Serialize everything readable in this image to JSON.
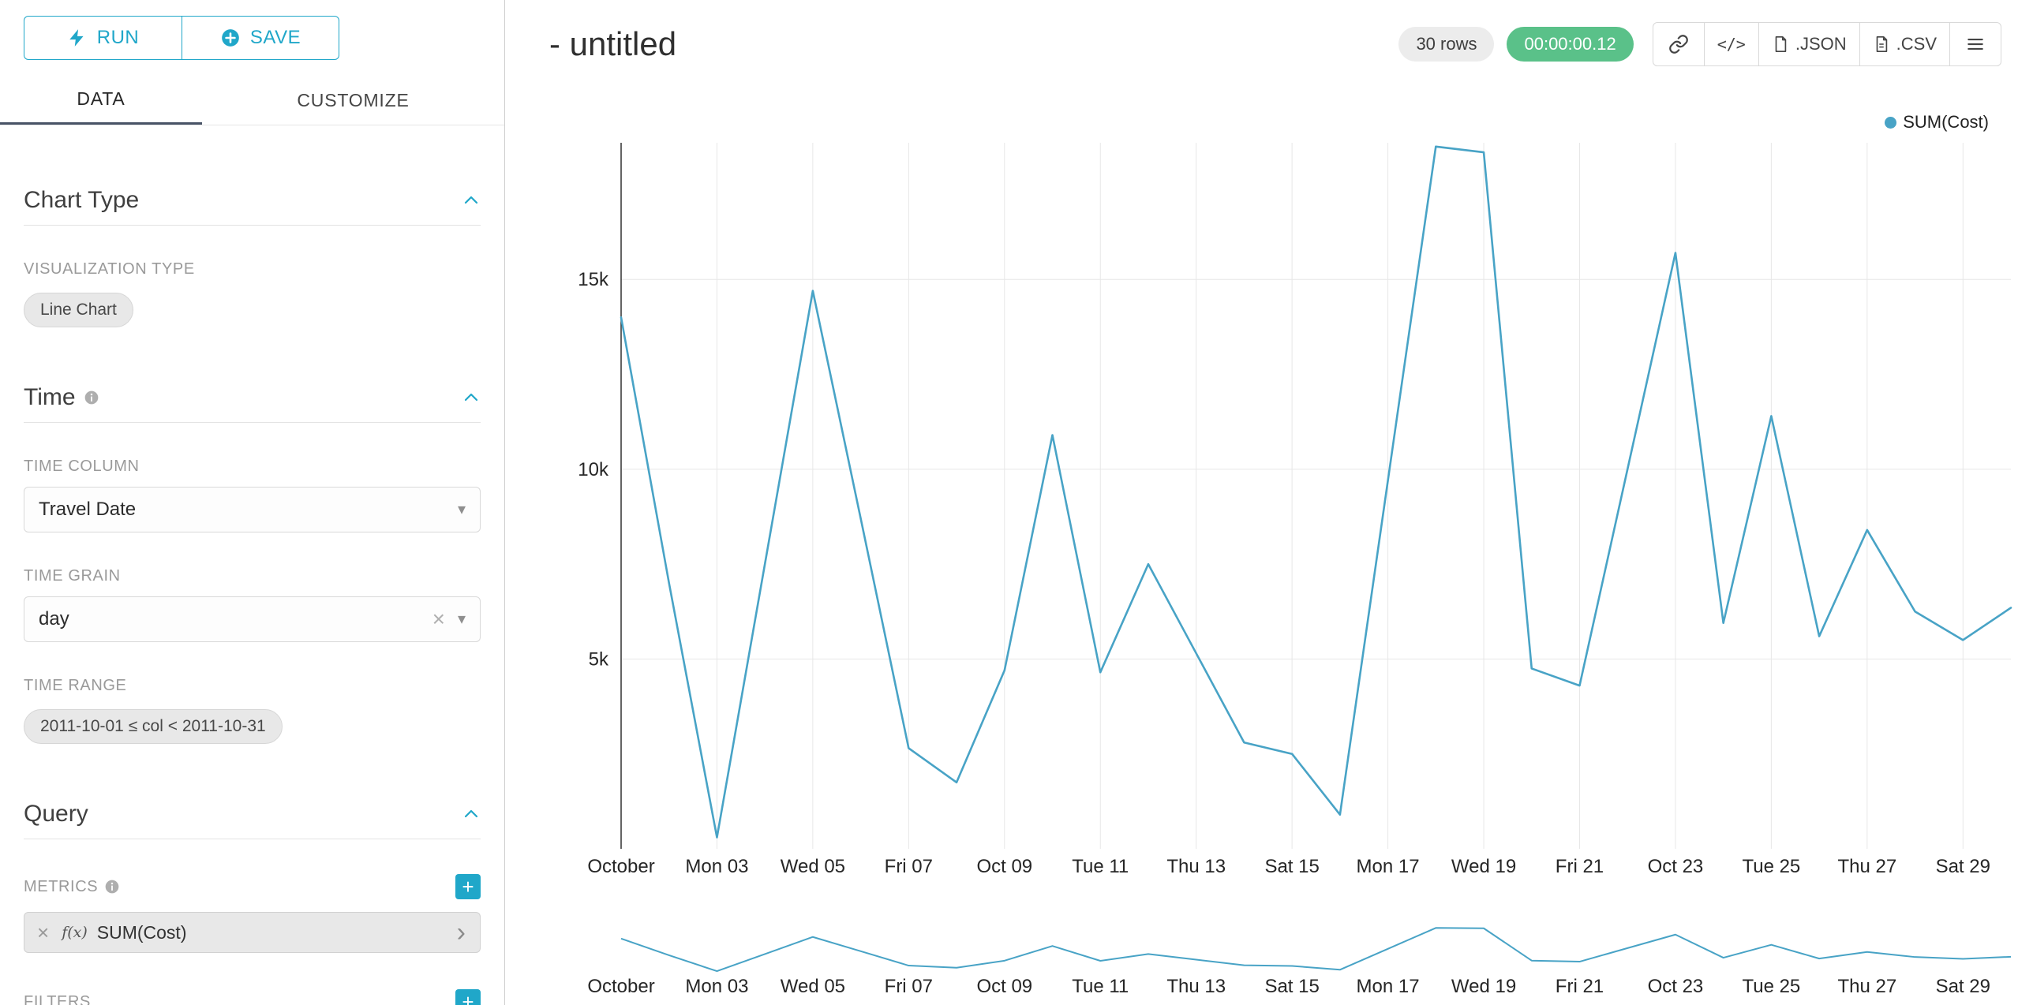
{
  "colors": {
    "accent": "#20a7c9",
    "line": "#48a3c6",
    "success_badge": "#5ac189",
    "active_tab_underline": "#485366"
  },
  "toolbar": {
    "run": "RUN",
    "save": "SAVE"
  },
  "tabs": [
    {
      "label": "DATA"
    },
    {
      "label": "CUSTOMIZE"
    }
  ],
  "sidebar": {
    "chart_type": {
      "title": "Chart Type",
      "viz_label": "VISUALIZATION TYPE",
      "viz_value": "Line Chart"
    },
    "time": {
      "title": "Time",
      "column_label": "TIME COLUMN",
      "column_value": "Travel Date",
      "grain_label": "TIME GRAIN",
      "grain_value": "day",
      "range_label": "TIME RANGE",
      "range_value": "2011-10-01 ≤ col < 2011-10-31"
    },
    "query": {
      "title": "Query",
      "metrics_label": "METRICS",
      "metric_fx": "f(x)",
      "metric_value": "SUM(Cost)",
      "filters_label": "FILTERS"
    }
  },
  "header": {
    "title": "- untitled",
    "rows_badge": "30 rows",
    "timer_badge": "00:00:00.12",
    "embed_glyph": "</>",
    "export_json": ".JSON",
    "export_csv": ".CSV"
  },
  "legend_label": "SUM(Cost)",
  "chart_data": {
    "type": "line",
    "title": "- untitled",
    "x_range": [
      "2011-10-01",
      "2011-10-30"
    ],
    "n_points": 30,
    "series": [
      {
        "name": "SUM(Cost)",
        "values": [
          14000,
          7000,
          300,
          7500,
          14700,
          8700,
          2650,
          1750,
          4700,
          10900,
          4650,
          7500,
          5150,
          2800,
          2500,
          900,
          9700,
          18500,
          18350,
          4750,
          4300,
          10000,
          15700,
          5950,
          11400,
          5600,
          8400,
          6250,
          5500,
          6350
        ]
      }
    ],
    "x_tick_labels": [
      "October",
      "Mon 03",
      "Wed 05",
      "Fri 07",
      "Oct 09",
      "Tue 11",
      "Thu 13",
      "Sat 15",
      "Mon 17",
      "Wed 19",
      "Fri 21",
      "Oct 23",
      "Tue 25",
      "Thu 27",
      "Sat 29"
    ],
    "x_tick_every": 2,
    "y_ticks": [
      {
        "value": 5000,
        "label": "5k"
      },
      {
        "value": 10000,
        "label": "10k"
      },
      {
        "value": 15000,
        "label": "15k"
      }
    ],
    "ylim": [
      0,
      18600
    ],
    "grid": true,
    "legend_position": "top-right",
    "has_mini_range_chart": true
  }
}
